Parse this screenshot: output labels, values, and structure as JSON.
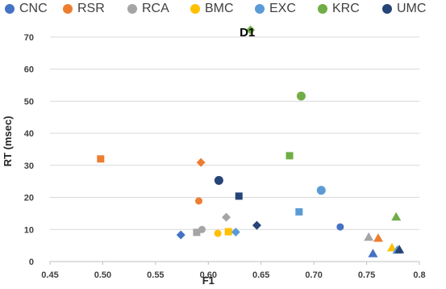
{
  "chart_data": {
    "type": "scatter",
    "title": "D1",
    "xlabel": "F1",
    "ylabel": "RT (msec)",
    "xlim": [
      0.45,
      0.8
    ],
    "ylim": [
      0,
      75
    ],
    "x_ticks": [
      "0.45",
      "0.50",
      "0.55",
      "0.60",
      "0.65",
      "0.70",
      "0.75",
      "0.8"
    ],
    "y_ticks": [
      "0",
      "10",
      "20",
      "30",
      "40",
      "50",
      "60",
      "70"
    ],
    "grid": true,
    "legend_position": "top",
    "series": [
      {
        "name": "CNC",
        "color": "#4472C4",
        "points": [
          {
            "x": 0.725,
            "y": 10.8,
            "marker": "circle"
          },
          {
            "x": 0.574,
            "y": 8.3,
            "marker": "diamond"
          },
          {
            "x": 0.756,
            "y": 2.5,
            "marker": "triangle"
          }
        ]
      },
      {
        "name": "RSR",
        "color": "#ED7D31",
        "points": [
          {
            "x": 0.591,
            "y": 18.9,
            "marker": "circle"
          },
          {
            "x": 0.593,
            "y": 30.9,
            "marker": "diamond"
          },
          {
            "x": 0.498,
            "y": 32.0,
            "marker": "square"
          },
          {
            "x": 0.761,
            "y": 7.3,
            "marker": "triangle"
          }
        ]
      },
      {
        "name": "RCA",
        "color": "#A5A5A5",
        "points": [
          {
            "x": 0.594,
            "y": 10.0,
            "marker": "circle"
          },
          {
            "x": 0.589,
            "y": 9.1,
            "marker": "square"
          },
          {
            "x": 0.617,
            "y": 13.8,
            "marker": "diamond"
          },
          {
            "x": 0.752,
            "y": 7.6,
            "marker": "triangle"
          }
        ]
      },
      {
        "name": "BMC",
        "color": "#FFC000",
        "points": [
          {
            "x": 0.609,
            "y": 8.8,
            "marker": "circle"
          },
          {
            "x": 0.619,
            "y": 9.3,
            "marker": "square"
          },
          {
            "x": 0.774,
            "y": 4.3,
            "marker": "triangle"
          }
        ]
      },
      {
        "name": "EXC",
        "color": "#5B9BD5",
        "points": [
          {
            "x": 0.707,
            "y": 22.2,
            "marker": "circle"
          },
          {
            "x": 0.686,
            "y": 15.5,
            "marker": "square"
          },
          {
            "x": 0.626,
            "y": 9.2,
            "marker": "diamond"
          },
          {
            "x": 0.779,
            "y": 3.6,
            "marker": "triangle"
          }
        ]
      },
      {
        "name": "KRC",
        "color": "#70AD47",
        "points": [
          {
            "x": 0.688,
            "y": 51.6,
            "marker": "circle"
          },
          {
            "x": 0.677,
            "y": 33.0,
            "marker": "square"
          },
          {
            "x": 0.64,
            "y": 72.2,
            "marker": "diamond"
          },
          {
            "x": 0.778,
            "y": 13.9,
            "marker": "triangle"
          }
        ]
      },
      {
        "name": "UMC",
        "color": "#264478",
        "points": [
          {
            "x": 0.61,
            "y": 25.3,
            "marker": "circle"
          },
          {
            "x": 0.629,
            "y": 20.4,
            "marker": "square"
          },
          {
            "x": 0.646,
            "y": 11.3,
            "marker": "diamond"
          },
          {
            "x": 0.781,
            "y": 3.7,
            "marker": "triangle"
          }
        ]
      }
    ]
  }
}
